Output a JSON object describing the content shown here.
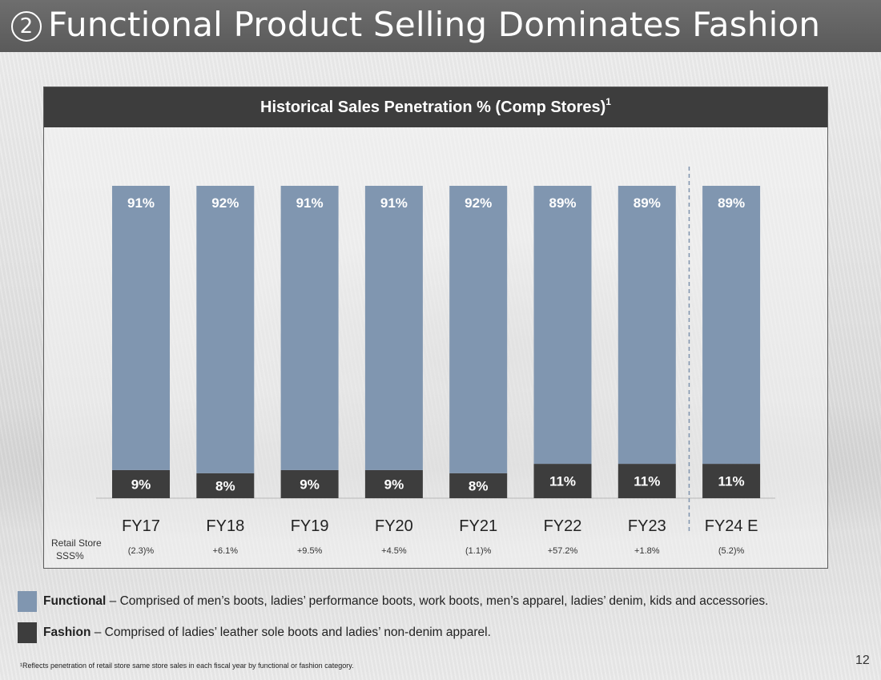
{
  "slide": {
    "title_number": "2",
    "title": "Functional Product Selling Dominates Fashion",
    "page_number": "12",
    "footnote": "¹Reflects penetration of retail store same store sales in each fiscal year by functional or fashion category."
  },
  "chart_header": {
    "title": "Historical Sales Penetration % (Comp Stores)",
    "superscript": "1"
  },
  "chart_data": {
    "type": "bar",
    "stacked": true,
    "title": "Historical Sales Penetration % (Comp Stores)",
    "categories": [
      "FY17",
      "FY18",
      "FY19",
      "FY20",
      "FY21",
      "FY22",
      "FY23",
      "FY24 E"
    ],
    "series": [
      {
        "name": "Fashion",
        "color": "#3d3d3d",
        "values": [
          9,
          8,
          9,
          9,
          8,
          11,
          11,
          11
        ],
        "labels": [
          "9%",
          "8%",
          "9%",
          "9%",
          "8%",
          "11%",
          "11%",
          "11%"
        ]
      },
      {
        "name": "Functional",
        "color": "#8096b0",
        "values": [
          91,
          92,
          91,
          91,
          92,
          89,
          89,
          89
        ],
        "labels": [
          "91%",
          "92%",
          "91%",
          "91%",
          "92%",
          "89%",
          "89%",
          "89%"
        ]
      }
    ],
    "ylim": [
      0,
      100
    ],
    "xlabel": "",
    "ylabel": "",
    "forecast_divider_before": "FY24 E",
    "secondary_row": {
      "label_line1": "Retail Store",
      "label_line2": "SSS%",
      "values": [
        "(2.3)%",
        "+6.1%",
        "+9.5%",
        "+4.5%",
        "(1.1)%",
        "+57.2%",
        "+1.8%",
        "(5.2)%"
      ]
    }
  },
  "legend": [
    {
      "name": "Functional",
      "color": "#8096b0",
      "description": " – Comprised of men’s boots, ladies’ performance boots, work boots, men’s apparel, ladies’ denim, kids and accessories."
    },
    {
      "name": "Fashion",
      "color": "#3d3d3d",
      "description": " – Comprised of ladies’ leather sole boots and ladies’ non-denim apparel."
    }
  ]
}
